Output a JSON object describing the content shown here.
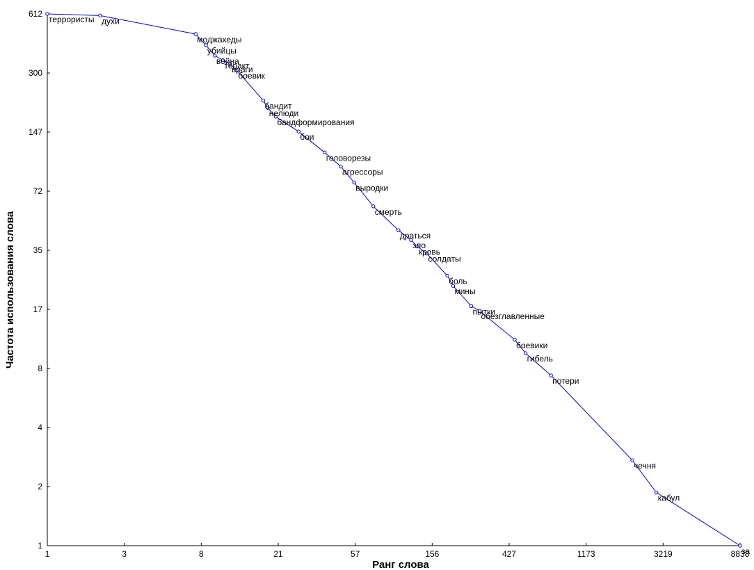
{
  "colors": {
    "series": "#0000cc",
    "axis": "#000000",
    "background": "#ffffff"
  },
  "chart_data": {
    "type": "line",
    "title": "",
    "xlabel": "Ранг слова",
    "ylabel": "Частота использования слова",
    "x_scale": "log",
    "y_scale": "log",
    "xlim": [
      1,
      8838
    ],
    "ylim": [
      1,
      612
    ],
    "grid": false,
    "x_ticks": [
      "1",
      "3",
      "8",
      "21",
      "57",
      "156",
      "427",
      "1173",
      "3219",
      "8838"
    ],
    "y_ticks": [
      "612",
      "300",
      "147",
      "72",
      "35",
      "17",
      "8",
      "4",
      "2",
      "1"
    ],
    "series": [
      {
        "points": [
          {
            "x": 1,
            "y": 612,
            "label": "террористы"
          },
          {
            "x": 2,
            "y": 600,
            "label": "духи"
          },
          {
            "x": 7,
            "y": 480,
            "label": "моджахеды"
          },
          {
            "x": 8,
            "y": 420,
            "label": "убийцы"
          },
          {
            "x": 9,
            "y": 370,
            "label": "война"
          },
          {
            "x": 10,
            "y": 350,
            "label": "теракт"
          },
          {
            "x": 11,
            "y": 335,
            "label": "враги"
          },
          {
            "x": 12,
            "y": 310,
            "label": "боевик"
          },
          {
            "x": 17,
            "y": 215,
            "label": "бандит"
          },
          {
            "x": 18,
            "y": 197,
            "label": "нелюди"
          },
          {
            "x": 20,
            "y": 177,
            "label": "бандформирования"
          },
          {
            "x": 27,
            "y": 148,
            "label": "бои"
          },
          {
            "x": 38,
            "y": 115,
            "label": "головорезы"
          },
          {
            "x": 47,
            "y": 97,
            "label": "агрессоры"
          },
          {
            "x": 56,
            "y": 80,
            "label": "выродки"
          },
          {
            "x": 72,
            "y": 60,
            "label": "смерть"
          },
          {
            "x": 100,
            "y": 45,
            "label": "драться"
          },
          {
            "x": 118,
            "y": 40,
            "label": "зло"
          },
          {
            "x": 128,
            "y": 37,
            "label": "кровь"
          },
          {
            "x": 145,
            "y": 34,
            "label": "солдаты"
          },
          {
            "x": 190,
            "y": 26,
            "label": "боль"
          },
          {
            "x": 205,
            "y": 23,
            "label": "мины"
          },
          {
            "x": 260,
            "y": 18,
            "label": "пытки"
          },
          {
            "x": 290,
            "y": 17,
            "label": "обезглавленные"
          },
          {
            "x": 460,
            "y": 12,
            "label": "боевики"
          },
          {
            "x": 530,
            "y": 10.2,
            "label": "гибель"
          },
          {
            "x": 740,
            "y": 7.8,
            "label": "потери"
          },
          {
            "x": 2150,
            "y": 2.8,
            "label": "чечня"
          },
          {
            "x": 2950,
            "y": 1.9,
            "label": "кабул"
          },
          {
            "x": 8838,
            "y": 1,
            "label": "за"
          }
        ]
      }
    ]
  }
}
